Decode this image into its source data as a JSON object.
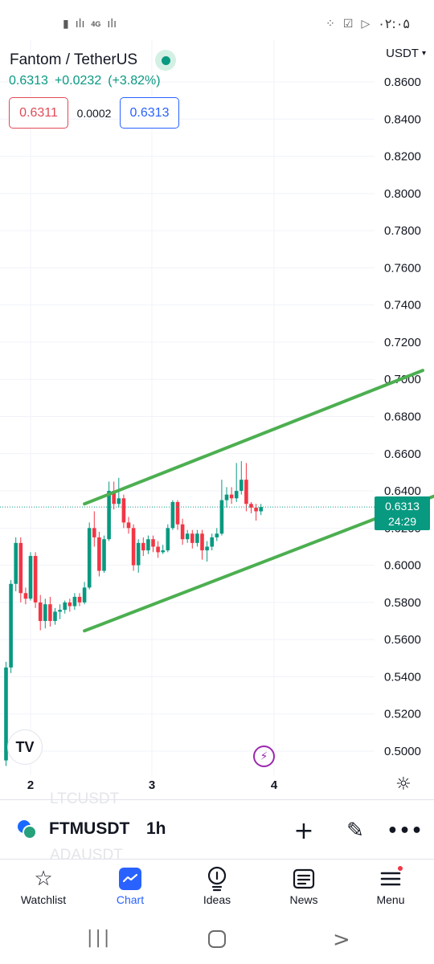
{
  "status_bar": {
    "time": "۰۲:۰۵",
    "network": "4G",
    "left_icons": [
      "battery-icon",
      "signal-icon",
      "data-arrows-icon",
      "signal-icon"
    ],
    "right_icons": [
      "apps-icon",
      "check-box-icon",
      "play-store-icon"
    ]
  },
  "header": {
    "title": "Fantom / TetherUS",
    "price": "0.6313",
    "change": "+0.0232",
    "change_pct": "(+3.82%)",
    "sell": "0.6311",
    "spread": "0.0002",
    "buy": "0.6313",
    "currency": "USDT"
  },
  "price_tag": {
    "price": "0.6313",
    "countdown": "24:29"
  },
  "colors": {
    "up": "#089981",
    "down": "#f23645",
    "trendline": "#4caf50",
    "accent": "#2962ff"
  },
  "chart_data": {
    "type": "candlestick",
    "symbol": "FTMUSDT",
    "interval": "1h",
    "ylim": [
      0.49,
      0.868
    ],
    "y_ticks": [
      "0.8600",
      "0.8400",
      "0.8200",
      "0.8000",
      "0.7800",
      "0.7600",
      "0.7400",
      "0.7200",
      "0.7000",
      "0.6800",
      "0.6600",
      "0.6400",
      "0.6200",
      "0.6000",
      "0.5800",
      "0.5600",
      "0.5400",
      "0.5200",
      "0.5000"
    ],
    "x_ticks": [
      "2",
      "3",
      "4"
    ],
    "last_price": 0.6313,
    "candles": [
      [
        0.495,
        0.545,
        0.492,
        0.548
      ],
      [
        0.545,
        0.59,
        0.542,
        0.592
      ],
      [
        0.59,
        0.612,
        0.586,
        0.615
      ],
      [
        0.612,
        0.585,
        0.58,
        0.615
      ],
      [
        0.585,
        0.582,
        0.579,
        0.588
      ],
      [
        0.582,
        0.605,
        0.581,
        0.607
      ],
      [
        0.605,
        0.58,
        0.577,
        0.607
      ],
      [
        0.58,
        0.57,
        0.565,
        0.584
      ],
      [
        0.57,
        0.579,
        0.566,
        0.582
      ],
      [
        0.579,
        0.57,
        0.567,
        0.583
      ],
      [
        0.57,
        0.575,
        0.568,
        0.577
      ],
      [
        0.575,
        0.576,
        0.571,
        0.579
      ],
      [
        0.576,
        0.58,
        0.574,
        0.581
      ],
      [
        0.58,
        0.578,
        0.575,
        0.582
      ],
      [
        0.578,
        0.583,
        0.576,
        0.585
      ],
      [
        0.583,
        0.58,
        0.578,
        0.585
      ],
      [
        0.58,
        0.588,
        0.579,
        0.591
      ],
      [
        0.588,
        0.62,
        0.587,
        0.623
      ],
      [
        0.62,
        0.615,
        0.61,
        0.629
      ],
      [
        0.615,
        0.597,
        0.594,
        0.618
      ],
      [
        0.597,
        0.614,
        0.596,
        0.616
      ],
      [
        0.614,
        0.64,
        0.613,
        0.645
      ],
      [
        0.64,
        0.633,
        0.63,
        0.645
      ],
      [
        0.633,
        0.636,
        0.631,
        0.647
      ],
      [
        0.636,
        0.623,
        0.62,
        0.638
      ],
      [
        0.623,
        0.62,
        0.617,
        0.626
      ],
      [
        0.62,
        0.6,
        0.597,
        0.622
      ],
      [
        0.6,
        0.612,
        0.596,
        0.614
      ],
      [
        0.612,
        0.608,
        0.605,
        0.615
      ],
      [
        0.608,
        0.614,
        0.606,
        0.616
      ],
      [
        0.614,
        0.61,
        0.607,
        0.616
      ],
      [
        0.61,
        0.607,
        0.604,
        0.613
      ],
      [
        0.607,
        0.608,
        0.606,
        0.611
      ],
      [
        0.608,
        0.62,
        0.607,
        0.622
      ],
      [
        0.62,
        0.634,
        0.619,
        0.635
      ],
      [
        0.634,
        0.622,
        0.619,
        0.635
      ],
      [
        0.622,
        0.614,
        0.611,
        0.625
      ],
      [
        0.614,
        0.617,
        0.612,
        0.619
      ],
      [
        0.617,
        0.612,
        0.609,
        0.619
      ],
      [
        0.612,
        0.617,
        0.61,
        0.619
      ],
      [
        0.617,
        0.608,
        0.603,
        0.619
      ],
      [
        0.608,
        0.61,
        0.602,
        0.613
      ],
      [
        0.61,
        0.615,
        0.608,
        0.617
      ],
      [
        0.615,
        0.617,
        0.613,
        0.62
      ],
      [
        0.617,
        0.635,
        0.616,
        0.646
      ],
      [
        0.635,
        0.638,
        0.631,
        0.642
      ],
      [
        0.638,
        0.636,
        0.633,
        0.642
      ],
      [
        0.636,
        0.64,
        0.634,
        0.655
      ],
      [
        0.64,
        0.646,
        0.638,
        0.656
      ],
      [
        0.646,
        0.633,
        0.629,
        0.655
      ],
      [
        0.633,
        0.631,
        0.628,
        0.634
      ],
      [
        0.631,
        0.629,
        0.624,
        0.633
      ],
      [
        0.629,
        0.6313,
        0.627,
        0.633
      ]
    ],
    "trendlines": [
      {
        "from": [
          16,
          0.633
        ],
        "to": [
          85,
          0.7048
        ]
      },
      {
        "from": [
          16,
          0.5647
        ],
        "to": [
          95,
          0.645
        ]
      }
    ]
  },
  "toolbar": {
    "symbol": "FTMUSDT",
    "interval": "1h",
    "ghost_above": "LTCUSDT",
    "ghost_below": "ADAUSDT"
  },
  "nav": {
    "items": [
      {
        "label": "Watchlist"
      },
      {
        "label": "Chart"
      },
      {
        "label": "Ideas"
      },
      {
        "label": "News"
      },
      {
        "label": "Menu"
      }
    ]
  }
}
